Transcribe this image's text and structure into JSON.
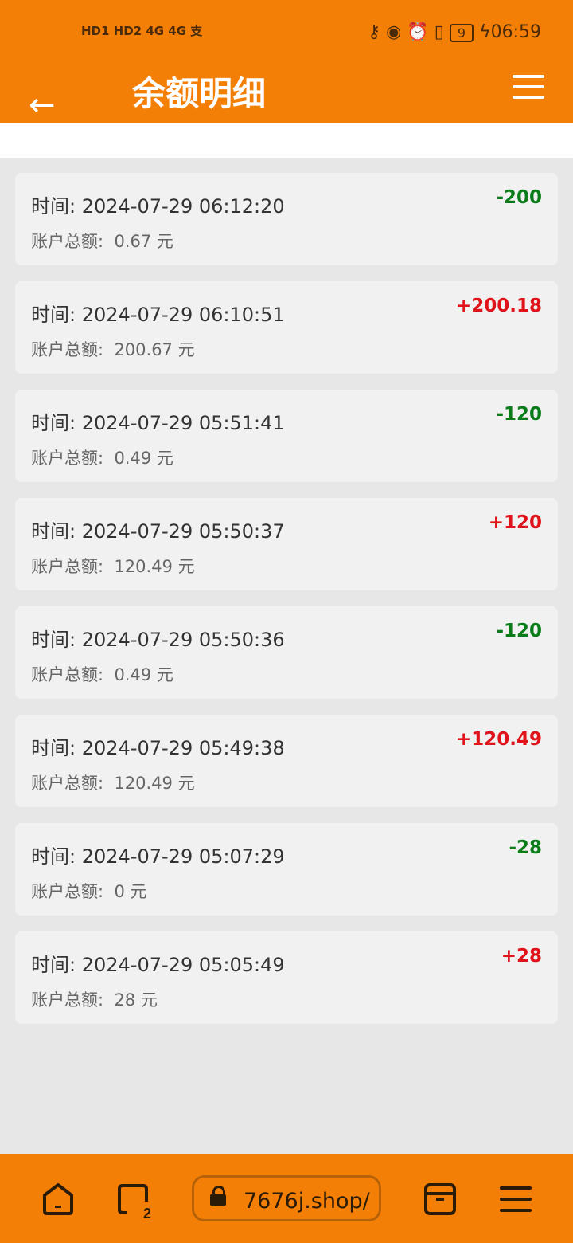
{
  "status": {
    "left": "HD1 HD2 4G 4G 支",
    "time": "06:59",
    "battery": "9",
    "icons": "key-icon eye-icon alarm-icon vibrate-icon"
  },
  "header": {
    "title": "余额明细",
    "back_icon": "←"
  },
  "colors": {
    "brand": "#f47f06",
    "positive": "#e0121a",
    "negative": "#0a7d1a"
  },
  "records": [
    {
      "time_label": "时间:",
      "time": "2024-07-29 06:12:20",
      "balance_label": "账户总额:",
      "balance": "0.67 元",
      "amount": "-200",
      "type": "negative"
    },
    {
      "time_label": "时间:",
      "time": "2024-07-29 06:10:51",
      "balance_label": "账户总额:",
      "balance": "200.67 元",
      "amount": "+200.18",
      "type": "positive"
    },
    {
      "time_label": "时间:",
      "time": "2024-07-29 05:51:41",
      "balance_label": "账户总额:",
      "balance": "0.49 元",
      "amount": "-120",
      "type": "negative"
    },
    {
      "time_label": "时间:",
      "time": "2024-07-29 05:50:37",
      "balance_label": "账户总额:",
      "balance": "120.49 元",
      "amount": "+120",
      "type": "positive"
    },
    {
      "time_label": "时间:",
      "time": "2024-07-29 05:50:36",
      "balance_label": "账户总额:",
      "balance": "0.49 元",
      "amount": "-120",
      "type": "negative"
    },
    {
      "time_label": "时间:",
      "time": "2024-07-29 05:49:38",
      "balance_label": "账户总额:",
      "balance": "120.49 元",
      "amount": "+120.49",
      "type": "positive"
    },
    {
      "time_label": "时间:",
      "time": "2024-07-29 05:07:29",
      "balance_label": "账户总额:",
      "balance": "0 元",
      "amount": "-28",
      "type": "negative"
    },
    {
      "time_label": "时间:",
      "time": "2024-07-29 05:05:49",
      "balance_label": "账户总额:",
      "balance": "28 元",
      "amount": "+28",
      "type": "positive"
    }
  ],
  "browser": {
    "url": "7676j.shop/",
    "tab_count": "2"
  }
}
